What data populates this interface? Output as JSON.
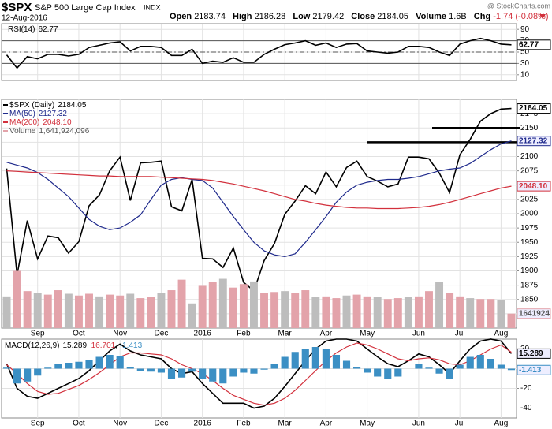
{
  "header": {
    "ticker": "$SPX",
    "name": "S&P 500 Large Cap Index",
    "exchange": "INDX",
    "date": "12-Aug-2016",
    "source": "@ StockCharts.com",
    "quote": [
      {
        "label": "Open",
        "value": 2183.74
      },
      {
        "label": "High",
        "value": 2186.28
      },
      {
        "label": "Low",
        "value": 2179.42
      },
      {
        "label": "Close",
        "value": 2184.05
      },
      {
        "label": "Volume",
        "value": "1.6B"
      },
      {
        "label": "Chg",
        "value": "-1.74 (-0.08%)"
      }
    ]
  },
  "chart_data": [
    {
      "type": "line",
      "title": "RSI(14)",
      "ylim": [
        0,
        100
      ],
      "yticks": [
        10,
        30,
        50,
        70,
        90
      ],
      "reference_levels": [
        30,
        50,
        70
      ],
      "series": [
        {
          "name": "RSI(14)",
          "color": "#000000",
          "legend_value": "62.77",
          "tag": "62.77",
          "values": [
            45,
            22,
            42,
            38,
            46,
            46,
            43,
            46,
            58,
            62,
            66,
            68,
            52,
            60,
            60,
            58,
            44,
            44,
            55,
            30,
            34,
            32,
            40,
            32,
            32,
            46,
            55,
            63,
            66,
            70,
            62,
            66,
            58,
            64,
            65,
            52,
            50,
            48,
            50,
            60,
            60,
            58,
            50,
            44,
            64,
            70,
            74,
            70,
            64,
            62.77
          ]
        }
      ]
    },
    {
      "type": "line",
      "ylim": [
        1800,
        2200
      ],
      "yticks": [
        1825,
        1850,
        1875,
        1900,
        1925,
        1950,
        1975,
        2000,
        2025,
        2050,
        2075,
        2100,
        2125,
        2150,
        2175
      ],
      "grid": true,
      "levels": [
        2150,
        2125
      ],
      "categories": [
        null,
        null,
        null,
        "Sep",
        null,
        null,
        null,
        "Oct",
        null,
        null,
        null,
        "Nov",
        null,
        null,
        null,
        "Dec",
        null,
        null,
        null,
        "2016",
        null,
        null,
        null,
        "Feb",
        null,
        null,
        null,
        "Mar",
        null,
        null,
        null,
        "Apr",
        null,
        null,
        null,
        "May",
        null,
        null,
        null,
        null,
        "Jun",
        null,
        null,
        null,
        "Jul",
        null,
        null,
        null,
        "Aug",
        null
      ],
      "series": [
        {
          "name": "$SPX (Daily)",
          "color": "#000000",
          "legend_value": "2184.05",
          "tag": "2184.05",
          "values": [
            2079,
            1893,
            1988,
            1921,
            1961,
            1958,
            1931,
            1951,
            2014,
            2033,
            2075,
            2099,
            2023,
            2089,
            2090,
            2092,
            2012,
            2005,
            2060,
            1922,
            1921,
            1906,
            1940,
            1880,
            1865,
            1918,
            1948,
            1999,
            2022,
            2049,
            2035,
            2073,
            2047,
            2081,
            2092,
            2065,
            2057,
            2047,
            2052,
            2099,
            2099,
            2096,
            2071,
            2037,
            2103,
            2130,
            2162,
            2175,
            2183,
            2184.05
          ]
        },
        {
          "name": "MA(50)",
          "color": "#1f2a8c",
          "legend_value": "2127.32",
          "tag": "2127.32",
          "values": [
            2090,
            2085,
            2080,
            2072,
            2060,
            2045,
            2030,
            2010,
            1990,
            1978,
            1972,
            1975,
            1985,
            1998,
            2025,
            2050,
            2060,
            2063,
            2060,
            2058,
            2045,
            2020,
            1995,
            1972,
            1950,
            1935,
            1928,
            1925,
            1930,
            1950,
            1972,
            1995,
            2020,
            2038,
            2050,
            2055,
            2058,
            2060,
            2060,
            2062,
            2065,
            2070,
            2075,
            2078,
            2080,
            2088,
            2100,
            2112,
            2122,
            2127.32
          ]
        },
        {
          "name": "MA(200)",
          "color": "#d2303c",
          "legend_value": "2048.10",
          "tag": "2048.10",
          "values": [
            2075,
            2074,
            2073,
            2072,
            2071,
            2070,
            2069,
            2068,
            2067,
            2066,
            2066,
            2065,
            2065,
            2065,
            2065,
            2064,
            2063,
            2062,
            2061,
            2060,
            2058,
            2055,
            2052,
            2048,
            2044,
            2040,
            2035,
            2030,
            2025,
            2022,
            2018,
            2015,
            2013,
            2011,
            2010,
            2010,
            2009,
            2009,
            2009,
            2010,
            2011,
            2013,
            2016,
            2020,
            2025,
            2030,
            2035,
            2040,
            2045,
            2048.1
          ]
        },
        {
          "name": "Volume",
          "type": "bar",
          "axis": "volume",
          "color": "#e3a3aa",
          "legend_value": "1,641,924,096",
          "tag": "1641924",
          "values": [
            3600000000,
            6500000000,
            4200000000,
            4000000000,
            3800000000,
            4300000000,
            3900000000,
            3700000000,
            3900000000,
            3600000000,
            3800000000,
            3700000000,
            3900000000,
            3400000000,
            3500000000,
            4000000000,
            4300000000,
            5500000000,
            2800000000,
            4800000000,
            5200000000,
            5600000000,
            4600000000,
            5000000000,
            5300000000,
            4000000000,
            4100000000,
            4200000000,
            4000000000,
            4300000000,
            3500000000,
            3600000000,
            3400000000,
            3700000000,
            3800000000,
            3600000000,
            3500000000,
            3300000000,
            3400000000,
            3500000000,
            3600000000,
            4200000000,
            5200000000,
            4000000000,
            3600000000,
            3400000000,
            3300000000,
            3300000000,
            3200000000,
            1641924096
          ]
        }
      ]
    },
    {
      "type": "line",
      "title": "MACD(12,26,9)",
      "legend_separator": ", ",
      "ylim": [
        -50,
        30
      ],
      "yticks": [
        -40,
        -20,
        0,
        20
      ],
      "series": [
        {
          "name": "MACD",
          "color": "#000000",
          "legend_value": "15.289",
          "tag": "15.289",
          "values": [
            5,
            -20,
            -28,
            -30,
            -25,
            -20,
            -15,
            -10,
            -2,
            8,
            18,
            25,
            18,
            14,
            12,
            10,
            0,
            -5,
            -3,
            -15,
            -25,
            -35,
            -35,
            -35,
            -40,
            -38,
            -30,
            -18,
            -5,
            8,
            20,
            28,
            30,
            30,
            28,
            20,
            12,
            5,
            2,
            8,
            15,
            12,
            4,
            -5,
            8,
            20,
            28,
            30,
            28,
            15.289
          ]
        },
        {
          "name": "Signal",
          "color": "#d2303c",
          "legend_value": "16.701",
          "values": [
            4,
            -5,
            -15,
            -23,
            -26,
            -25,
            -21,
            -17,
            -11,
            -4,
            4,
            12,
            16,
            16,
            15,
            14,
            10,
            4,
            0,
            -5,
            -12,
            -20,
            -27,
            -31,
            -35,
            -37,
            -35,
            -30,
            -22,
            -12,
            -2,
            8,
            16,
            22,
            26,
            24,
            20,
            15,
            10,
            8,
            10,
            11,
            9,
            5,
            4,
            8,
            14,
            20,
            24,
            16.701
          ]
        },
        {
          "name": "Histogram",
          "type": "bar",
          "color": "#3b8fc4",
          "legend_value": "-1.413",
          "tag": "-1.413",
          "values": [
            1,
            -15,
            -13,
            -7,
            1,
            5,
            6,
            7,
            9,
            12,
            14,
            13,
            2,
            -2,
            -3,
            -4,
            -10,
            -9,
            -3,
            -10,
            -13,
            -15,
            -8,
            -4,
            -5,
            -1,
            5,
            12,
            17,
            20,
            22,
            20,
            14,
            8,
            2,
            -4,
            -8,
            -10,
            -8,
            0,
            5,
            1,
            -5,
            -10,
            4,
            12,
            14,
            10,
            4,
            -1.413
          ]
        }
      ]
    }
  ]
}
